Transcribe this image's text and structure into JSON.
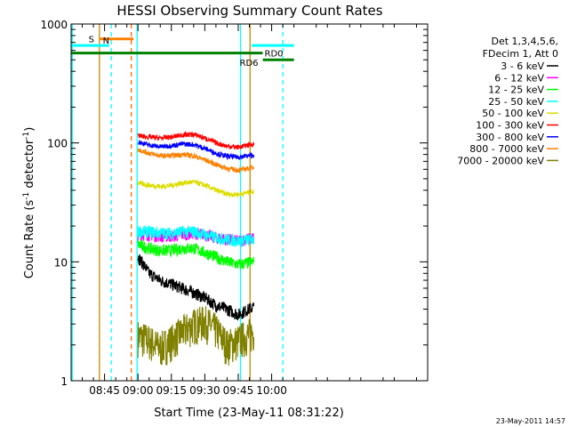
{
  "chart_data": {
    "type": "line",
    "title": "HESSI Observing Summary Count Rates",
    "xlabel": "Start Time (23-May-11 08:31:22)",
    "ylabel_main": "Count Rate (s",
    "ylabel_sup1": "-1",
    "ylabel_mid": " detector",
    "ylabel_sup2": "-1",
    "ylabel_end": ")",
    "xlim_min": [
      510,
      670
    ],
    "ylim": [
      1,
      1000
    ],
    "yscale": "log",
    "x_ticks": [
      {
        "value": 525,
        "label": "08:45"
      },
      {
        "value": 540,
        "label": "09:00"
      },
      {
        "value": 555,
        "label": "09:15"
      },
      {
        "value": 570,
        "label": "09:30"
      },
      {
        "value": 585,
        "label": "09:45"
      },
      {
        "value": 600,
        "label": "10:00"
      }
    ],
    "y_ticks": [
      {
        "value": 1,
        "label": "1"
      },
      {
        "value": 10,
        "label": "10"
      },
      {
        "value": 100,
        "label": "100"
      },
      {
        "value": 1000,
        "label": "1000"
      }
    ],
    "legend_header": [
      "Det 1,3,4,5,6,",
      "FDecim 1, Att 0"
    ],
    "series": [
      {
        "name": "3 - 6 keV",
        "color": "#000000",
        "x": [
          540,
          545,
          550,
          555,
          560,
          565,
          570,
          575,
          580,
          585,
          592
        ],
        "values": [
          11,
          8,
          7,
          6.5,
          6,
          5.5,
          5,
          4.3,
          4,
          3.6,
          4.2
        ]
      },
      {
        "name": "6 - 12 keV",
        "color": "#ff00ff",
        "x": [
          540,
          545,
          550,
          555,
          560,
          565,
          570,
          575,
          580,
          585,
          592
        ],
        "values": [
          17,
          17,
          16.5,
          16.5,
          17,
          17.5,
          17,
          16,
          15.5,
          15,
          16
        ]
      },
      {
        "name": "12 - 25 keV",
        "color": "#00ff00",
        "x": [
          540,
          545,
          550,
          555,
          560,
          565,
          570,
          575,
          580,
          585,
          592
        ],
        "values": [
          14,
          13,
          12.5,
          12.5,
          13,
          13,
          12,
          11,
          10,
          9.5,
          10
        ]
      },
      {
        "name": "25 - 50 keV",
        "color": "#00ffff",
        "x": [
          540,
          545,
          550,
          555,
          560,
          565,
          570,
          575,
          580,
          585,
          592
        ],
        "values": [
          18,
          18,
          17.5,
          17.5,
          18,
          18,
          17,
          16,
          15.5,
          15,
          15.5
        ]
      },
      {
        "name": "50 - 100 keV",
        "color": "#dddd00",
        "x": [
          540,
          545,
          550,
          555,
          560,
          565,
          570,
          575,
          580,
          585,
          592
        ],
        "values": [
          46,
          44,
          43,
          44,
          46,
          47,
          44,
          40,
          37,
          37,
          39
        ]
      },
      {
        "name": "100 - 300 keV",
        "color": "#ff0000",
        "x": [
          540,
          545,
          550,
          555,
          560,
          565,
          570,
          575,
          580,
          585,
          592
        ],
        "values": [
          115,
          112,
          110,
          112,
          117,
          118,
          110,
          100,
          94,
          92,
          98
        ]
      },
      {
        "name": "300 - 800 keV",
        "color": "#0000ff",
        "x": [
          540,
          545,
          550,
          555,
          560,
          565,
          570,
          575,
          580,
          585,
          592
        ],
        "values": [
          102,
          96,
          93,
          95,
          98,
          97,
          90,
          82,
          77,
          76,
          79
        ]
      },
      {
        "name": "800 - 7000 keV",
        "color": "#ff8000",
        "x": [
          540,
          545,
          550,
          555,
          560,
          565,
          570,
          575,
          580,
          585,
          592
        ],
        "values": [
          88,
          82,
          78,
          78,
          80,
          78,
          72,
          66,
          61,
          59,
          62
        ]
      },
      {
        "name": "7000 - 20000 keV",
        "color": "#808000",
        "x": [
          540,
          545,
          550,
          555,
          560,
          565,
          570,
          575,
          580,
          585,
          592
        ],
        "values": [
          2.4,
          2.2,
          1.9,
          2.2,
          2.6,
          3.0,
          3.2,
          2.7,
          2.0,
          2.2,
          2.6
        ]
      }
    ],
    "flags": {
      "saa_label": "S",
      "saa_range": [
        523,
        538
      ],
      "saa_value": 750,
      "night_label": "N",
      "night_ranges": [
        [
          510,
          527
        ],
        [
          591,
          610
        ]
      ],
      "night_value": 660,
      "rd0_label": "RD0",
      "rd6_label": "RD6",
      "rd_range": [
        510,
        610
      ],
      "rd_value": 570,
      "rd_step_value": 500,
      "rd_step_from": 596
    },
    "vlines": [
      {
        "x": 510.5,
        "color": "#00ffff",
        "style": "solid"
      },
      {
        "x": 522.7,
        "color": "#cc8800",
        "style": "solid"
      },
      {
        "x": 528,
        "color": "#00ffff",
        "style": "dash"
      },
      {
        "x": 537,
        "color": "#ff6600",
        "style": "dash"
      },
      {
        "x": 539.6,
        "color": "#00ffff",
        "style": "solid"
      },
      {
        "x": 586,
        "color": "#00ffff",
        "style": "solid"
      },
      {
        "x": 590.3,
        "color": "#cc8800",
        "style": "solid"
      },
      {
        "x": 605,
        "color": "#00ffff",
        "style": "dash"
      }
    ],
    "grid": false,
    "legend_position": "right"
  },
  "timestamp": "23-May-2011 14:57"
}
